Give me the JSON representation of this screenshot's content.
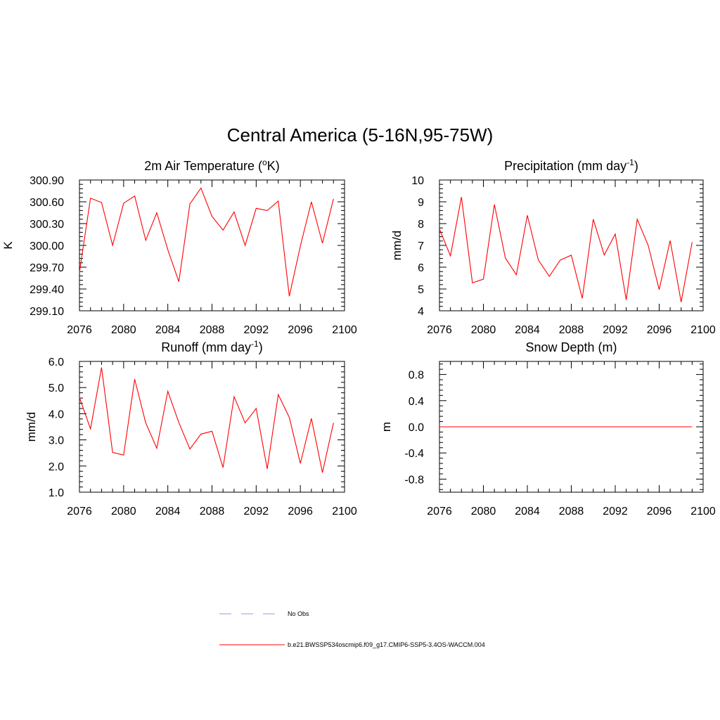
{
  "figure": {
    "title": "Central America (5-16N,95-75W)"
  },
  "legend": {
    "entries": [
      {
        "label": "No Obs",
        "color": "#9999dd",
        "style": "dashed"
      },
      {
        "label": "b.e21.BWSSP534oscmip6.f09_g17.CMIP6-SSP5-3.4OS-WACCM.004",
        "color": "#ff0000",
        "style": "solid"
      }
    ]
  },
  "chart_data": [
    {
      "type": "line",
      "title_main": "2m Air Temperature (",
      "title_sup_pre": "o",
      "title_mid": "K",
      "title_sup_post": "",
      "title_end": ")",
      "xlabel": "",
      "ylabel": "K",
      "xlim": [
        2076,
        2100
      ],
      "ylim": [
        299.1,
        300.9
      ],
      "xticks": [
        2076,
        2080,
        2084,
        2088,
        2092,
        2096,
        2100
      ],
      "xtick_labels": [
        "2076",
        "2080",
        "2084",
        "2088",
        "2092",
        "2096",
        "2100"
      ],
      "yticks": [
        299.1,
        299.4,
        299.7,
        300.0,
        300.3,
        300.6,
        300.9
      ],
      "ytick_labels": [
        "299.10",
        "299.40",
        "299.70",
        "300.00",
        "300.30",
        "300.60",
        "300.90"
      ],
      "series": [
        {
          "name": "b.e21.BWSSP534oscmip6.f09_g17.CMIP6-SSP5-3.4OS-WACCM.004",
          "color": "#ff0000",
          "x": [
            2076,
            2077,
            2078,
            2079,
            2080,
            2081,
            2082,
            2083,
            2084,
            2085,
            2086,
            2087,
            2088,
            2089,
            2090,
            2091,
            2092,
            2093,
            2094,
            2095,
            2096,
            2097,
            2098,
            2099
          ],
          "values": [
            299.63,
            300.65,
            300.59,
            300.0,
            300.58,
            300.68,
            300.07,
            300.45,
            299.94,
            299.5,
            300.57,
            300.79,
            300.4,
            300.21,
            300.46,
            300.0,
            300.51,
            300.48,
            300.61,
            299.3,
            299.99,
            300.6,
            300.03,
            300.64
          ]
        }
      ]
    },
    {
      "type": "line",
      "title_main": "Precipitation (mm day",
      "title_sup_pre": "",
      "title_mid": "",
      "title_sup_post": "-1",
      "title_end": ")",
      "xlabel": "",
      "ylabel": "mm/d",
      "xlim": [
        2076,
        2100
      ],
      "ylim": [
        4,
        10
      ],
      "xticks": [
        2076,
        2080,
        2084,
        2088,
        2092,
        2096,
        2100
      ],
      "xtick_labels": [
        "2076",
        "2080",
        "2084",
        "2088",
        "2092",
        "2096",
        "2100"
      ],
      "yticks": [
        4,
        5,
        6,
        7,
        8,
        9,
        10
      ],
      "ytick_labels": [
        "4",
        "5",
        "6",
        "7",
        "8",
        "9",
        "10"
      ],
      "series": [
        {
          "name": "b.e21.BWSSP534oscmip6.f09_g17.CMIP6-SSP5-3.4OS-WACCM.004",
          "color": "#ff0000",
          "x": [
            2076,
            2077,
            2078,
            2079,
            2080,
            2081,
            2082,
            2083,
            2084,
            2085,
            2086,
            2087,
            2088,
            2089,
            2090,
            2091,
            2092,
            2093,
            2094,
            2095,
            2096,
            2097,
            2098,
            2099
          ],
          "values": [
            7.75,
            6.52,
            9.22,
            5.28,
            5.45,
            8.88,
            6.42,
            5.65,
            8.38,
            6.33,
            5.58,
            6.33,
            6.55,
            4.57,
            8.2,
            6.56,
            7.52,
            4.5,
            8.2,
            7.0,
            4.97,
            7.22,
            4.4,
            7.15
          ]
        }
      ]
    },
    {
      "type": "line",
      "title_main": "Runoff (mm day",
      "title_sup_pre": "",
      "title_mid": "",
      "title_sup_post": "-1",
      "title_end": ")",
      "xlabel": "",
      "ylabel": "mm/d",
      "xlim": [
        2076,
        2100
      ],
      "ylim": [
        1.0,
        6.0
      ],
      "xticks": [
        2076,
        2080,
        2084,
        2088,
        2092,
        2096,
        2100
      ],
      "xtick_labels": [
        "2076",
        "2080",
        "2084",
        "2088",
        "2092",
        "2096",
        "2100"
      ],
      "yticks": [
        1.0,
        2.0,
        3.0,
        4.0,
        5.0,
        6.0
      ],
      "ytick_labels": [
        "1.0",
        "2.0",
        "3.0",
        "4.0",
        "5.0",
        "6.0"
      ],
      "series": [
        {
          "name": "b.e21.BWSSP534oscmip6.f09_g17.CMIP6-SSP5-3.4OS-WACCM.004",
          "color": "#ff0000",
          "x": [
            2076,
            2077,
            2078,
            2079,
            2080,
            2081,
            2082,
            2083,
            2084,
            2085,
            2086,
            2087,
            2088,
            2089,
            2090,
            2091,
            2092,
            2093,
            2094,
            2095,
            2096,
            2097,
            2098,
            2099
          ],
          "values": [
            4.62,
            3.42,
            5.77,
            2.52,
            2.42,
            5.32,
            3.65,
            2.68,
            4.86,
            3.66,
            2.65,
            3.22,
            3.33,
            1.94,
            4.65,
            3.65,
            4.2,
            1.89,
            4.73,
            3.86,
            2.1,
            3.82,
            1.75,
            3.65
          ]
        }
      ]
    },
    {
      "type": "line",
      "title_main": "Snow Depth (m)",
      "title_sup_pre": "",
      "title_mid": "",
      "title_sup_post": "",
      "title_end": "",
      "xlabel": "",
      "ylabel": "m",
      "xlim": [
        2076,
        2100
      ],
      "ylim": [
        -1.0,
        1.0
      ],
      "xticks": [
        2076,
        2080,
        2084,
        2088,
        2092,
        2096,
        2100
      ],
      "xtick_labels": [
        "2076",
        "2080",
        "2084",
        "2088",
        "2092",
        "2096",
        "2100"
      ],
      "yticks": [
        -0.8,
        -0.4,
        0.0,
        0.4,
        0.8
      ],
      "ytick_labels": [
        "-0.8",
        "-0.4",
        "0.0",
        "0.4",
        "0.8"
      ],
      "series": [
        {
          "name": "b.e21.BWSSP534oscmip6.f09_g17.CMIP6-SSP5-3.4OS-WACCM.004",
          "color": "#ff0000",
          "x": [
            2076,
            2077,
            2078,
            2079,
            2080,
            2081,
            2082,
            2083,
            2084,
            2085,
            2086,
            2087,
            2088,
            2089,
            2090,
            2091,
            2092,
            2093,
            2094,
            2095,
            2096,
            2097,
            2098,
            2099
          ],
          "values": [
            0,
            0,
            0,
            0,
            0,
            0,
            0,
            0,
            0,
            0,
            0,
            0,
            0,
            0,
            0,
            0,
            0,
            0,
            0,
            0,
            0,
            0,
            0,
            0
          ]
        }
      ]
    }
  ]
}
